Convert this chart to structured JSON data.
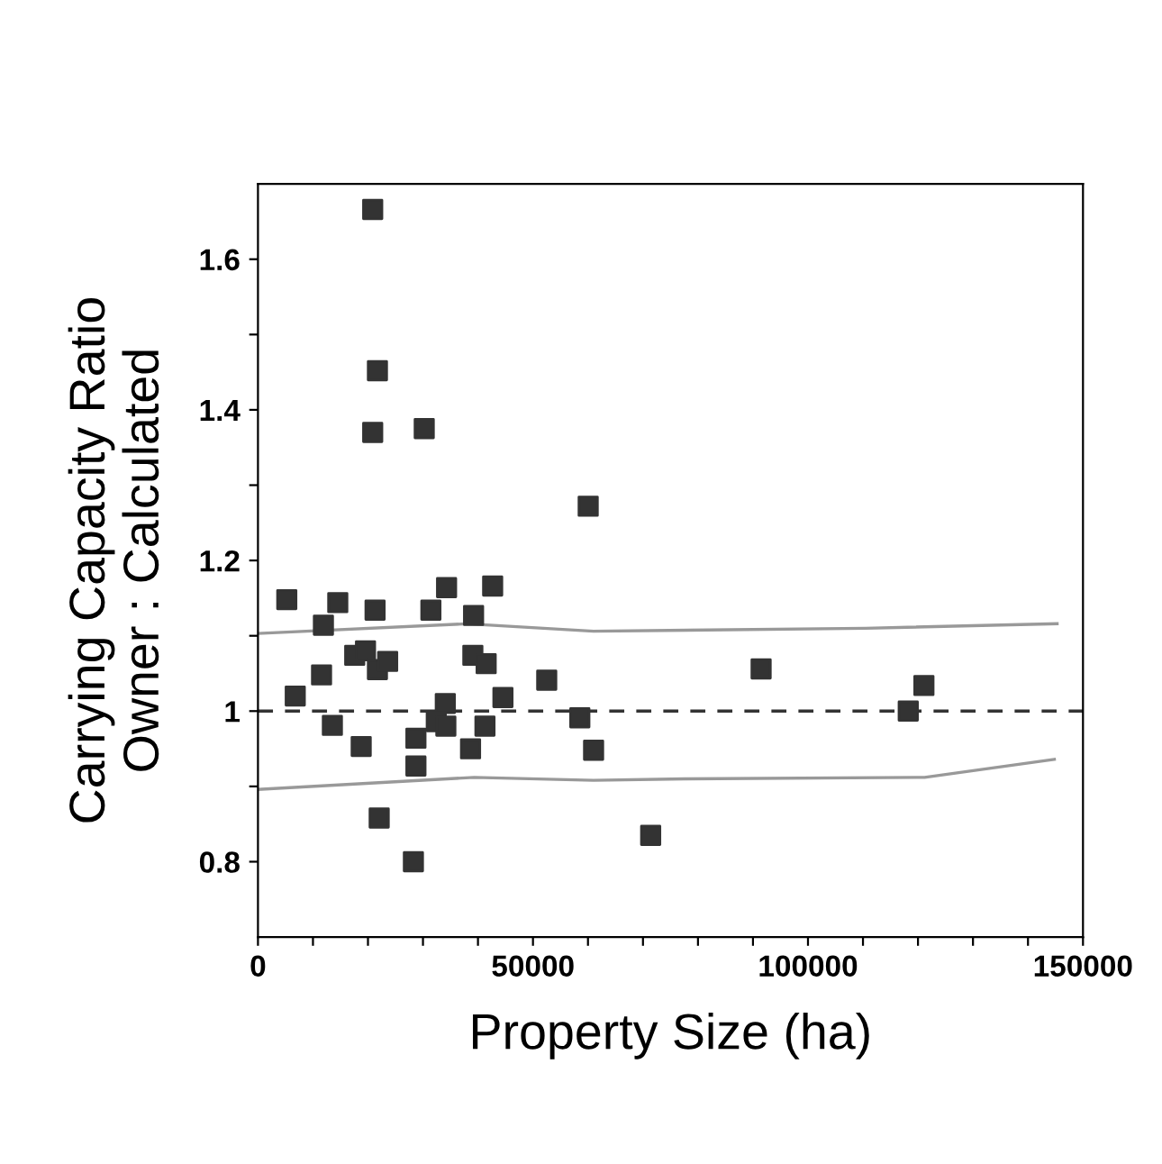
{
  "chart_data": {
    "type": "scatter",
    "xlabel": "Property Size (ha)",
    "ylabel": "Carrying Capacity Ratio\nOwner : Calculated",
    "xlim": [
      0,
      150000
    ],
    "ylim": [
      0.7,
      1.7
    ],
    "xticks": [
      0,
      {
        "value": 10000,
        "label": null
      },
      {
        "value": 20000,
        "label": null
      },
      {
        "value": 30000,
        "label": null
      },
      {
        "value": 40000,
        "label": null
      },
      50000,
      {
        "value": 60000,
        "label": null
      },
      {
        "value": 70000,
        "label": null
      },
      {
        "value": 80000,
        "label": null
      },
      {
        "value": 90000,
        "label": null
      },
      100000,
      {
        "value": 110000,
        "label": null
      },
      {
        "value": 120000,
        "label": null
      },
      {
        "value": 130000,
        "label": null
      },
      {
        "value": 140000,
        "label": null
      },
      150000
    ],
    "yticks": [
      0.8,
      {
        "value": 0.9,
        "label": null
      },
      1,
      {
        "value": 1.1,
        "label": null
      },
      1.2,
      {
        "value": 1.3,
        "label": null
      },
      1.4,
      {
        "value": 1.5,
        "label": null
      },
      1.6
    ],
    "grid": false,
    "legend": false,
    "marker": "square",
    "ref_lines": [
      {
        "axis": "y",
        "value": 1,
        "color": "#333333",
        "line_style": "dashed"
      }
    ],
    "series": [
      {
        "color": "#333333",
        "x": [
          20860,
          21720,
          20860,
          30230,
          60040,
          5240,
          14510,
          11900,
          21290,
          31440,
          34290,
          39200,
          42670,
          17590,
          19550,
          21720,
          23580,
          11560,
          6780,
          13530,
          18770,
          28720,
          28720,
          22040,
          28260,
          34060,
          32420,
          34160,
          38650,
          39960,
          41270,
          38650,
          39070,
          41490,
          44540,
          52500,
          58520,
          61020,
          71400,
          91480,
          118230,
          121080
        ],
        "values": [
          1.666,
          1.452,
          1.37,
          1.375,
          1.272,
          1.148,
          1.144,
          1.114,
          1.134,
          1.134,
          1.164,
          1.127,
          1.166,
          1.074,
          1.08,
          1.055,
          1.066,
          1.048,
          1.02,
          0.981,
          0.953,
          0.964,
          0.927,
          0.858,
          0.8,
          1.01,
          0.986,
          0.98,
          null,
          null,
          0.98,
          0.95,
          1.074,
          1.063,
          1.018,
          1.041,
          0.991,
          0.948,
          0.835,
          1.056,
          1.0,
          1.034
        ]
      },
      {
        "type": "line",
        "color": "#999999",
        "marker": "none",
        "line_style": "solid",
        "x": [
          0,
          38000,
          61000,
          110400,
          145300
        ],
        "values": [
          1.103,
          1.116,
          1.106,
          1.11,
          1.116
        ]
      },
      {
        "type": "line",
        "color": "#999999",
        "marker": "none",
        "line_style": "solid",
        "x": [
          0,
          39300,
          61000,
          77600,
          121200,
          144800
        ],
        "values": [
          0.896,
          0.912,
          0.908,
          0.91,
          0.912,
          0.936
        ]
      }
    ]
  }
}
